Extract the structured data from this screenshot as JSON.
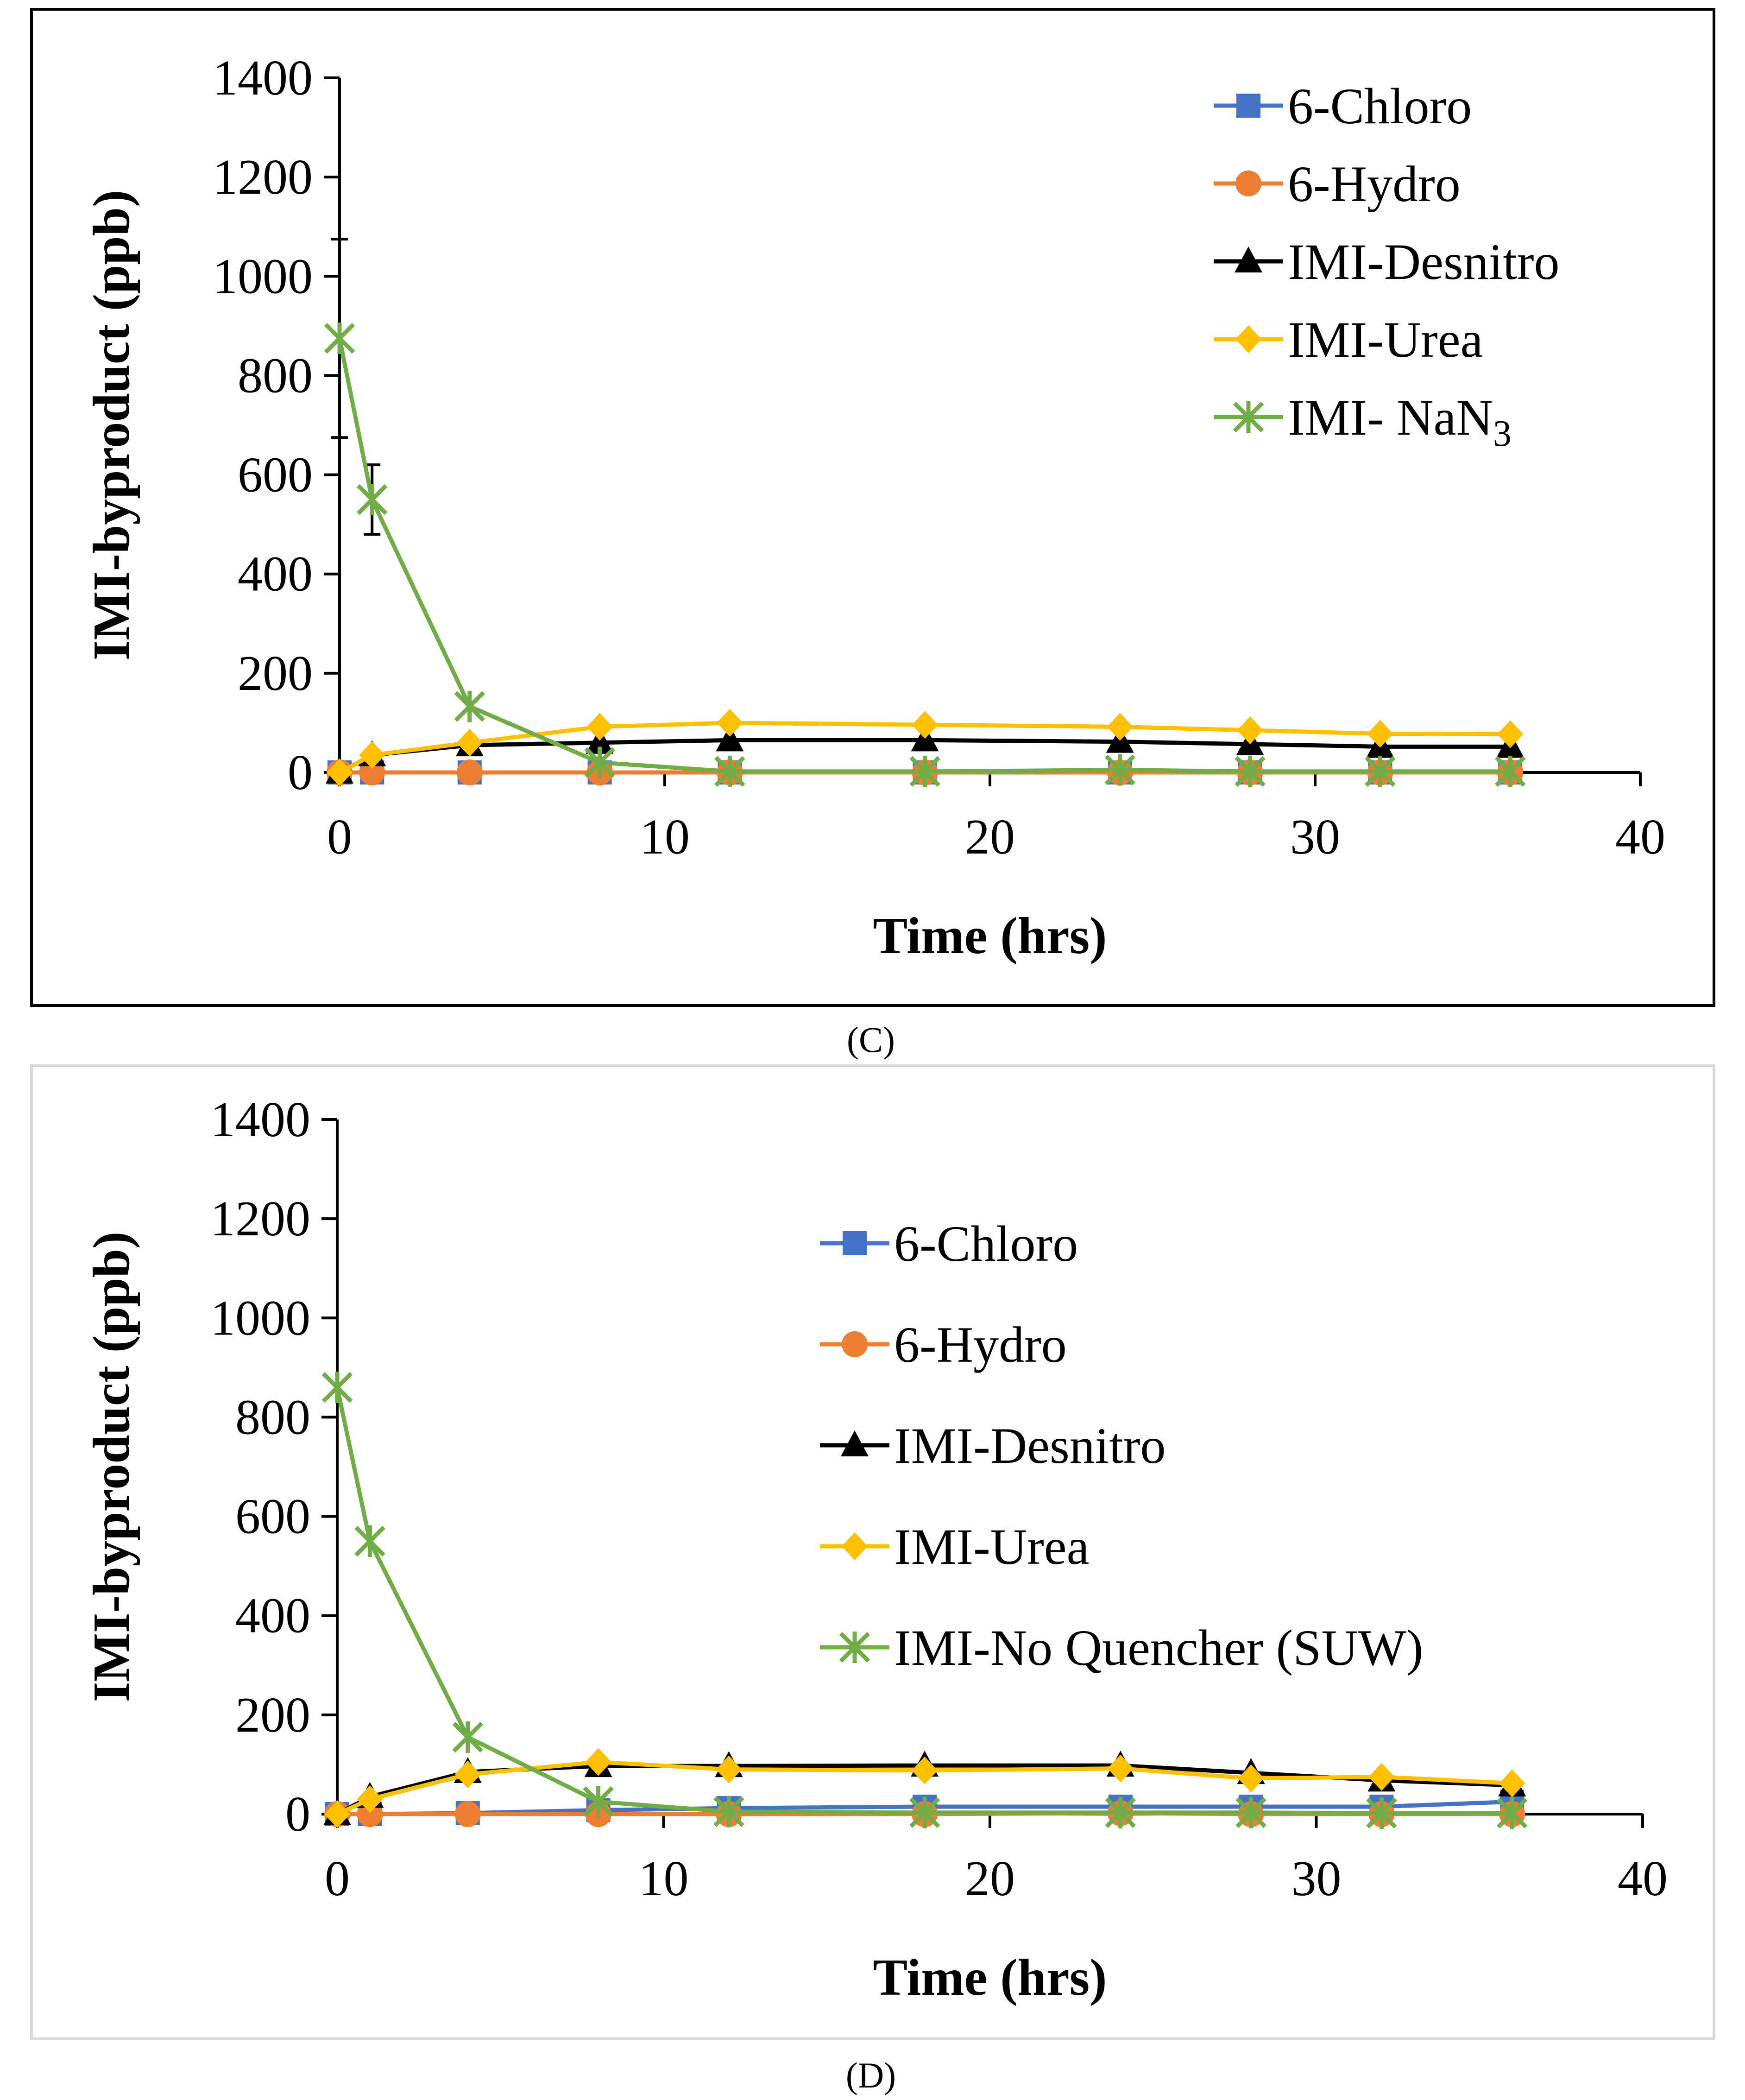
{
  "chart_data": [
    {
      "type": "line",
      "panel": "(C)",
      "caption": "(C)",
      "xlabel": "Time (hrs)",
      "ylabel": "IMI-byproduct (ppb)",
      "xlim": [
        0,
        40
      ],
      "ylim": [
        0,
        1400
      ],
      "xticks": [
        "0",
        "10",
        "20",
        "30",
        "40"
      ],
      "yticks": [
        "0",
        "200",
        "400",
        "600",
        "800",
        "1000",
        "1200",
        "1400"
      ],
      "legend_position": "top-right",
      "series": [
        {
          "name": "6-Chloro",
          "label": "6-Chloro",
          "color": "#4472C4",
          "marker": "square",
          "x": [
            0,
            1,
            4,
            8,
            12,
            18,
            24,
            28,
            32,
            36
          ],
          "y": [
            0,
            0,
            0,
            0,
            0,
            0,
            0,
            0,
            0,
            0
          ]
        },
        {
          "name": "6-Hydro",
          "label": "6-Hydro",
          "color": "#ED7D31",
          "marker": "circle",
          "x": [
            0,
            1,
            4,
            8,
            12,
            18,
            24,
            28,
            32,
            36
          ],
          "y": [
            0,
            0,
            0,
            0,
            0,
            0,
            0,
            0,
            0,
            0
          ]
        },
        {
          "name": "IMI-Desnitro",
          "label": "IMI-Desnitro",
          "color": "#000000",
          "marker": "triangle",
          "x": [
            0,
            1,
            4,
            8,
            12,
            18,
            24,
            28,
            32,
            36
          ],
          "y": [
            0,
            35,
            55,
            60,
            65,
            65,
            62,
            57,
            52,
            52
          ]
        },
        {
          "name": "IMI-Urea",
          "label": "IMI-Urea",
          "color": "#FFC000",
          "marker": "diamond",
          "x": [
            0,
            1,
            4,
            8,
            12,
            18,
            24,
            28,
            32,
            36
          ],
          "y": [
            0,
            35,
            60,
            92,
            100,
            96,
            92,
            85,
            78,
            77
          ]
        },
        {
          "name": "IMI- NaN3",
          "label_main": "IMI- NaN",
          "label_sub": "3",
          "color": "#70AD47",
          "marker": "star",
          "x": [
            0,
            1,
            4,
            8,
            12,
            18,
            24,
            28,
            32,
            36
          ],
          "y": [
            875,
            550,
            133,
            20,
            2,
            2,
            5,
            2,
            2,
            2
          ],
          "error_bars": [
            {
              "x": 0,
              "err": 200
            },
            {
              "x": 1,
              "err": 70
            }
          ]
        }
      ]
    },
    {
      "type": "line",
      "panel": "(D)",
      "caption": "(D)",
      "xlabel": "Time (hrs)",
      "ylabel": "IMI-byproduct (ppb)",
      "xlim": [
        0,
        40
      ],
      "ylim": [
        0,
        1400
      ],
      "xticks": [
        "0",
        "10",
        "20",
        "30",
        "40"
      ],
      "yticks": [
        "0",
        "200",
        "400",
        "600",
        "800",
        "1000",
        "1200",
        "1400"
      ],
      "legend_position": "right",
      "series": [
        {
          "name": "6-Chloro",
          "label": "6-Chloro",
          "color": "#4472C4",
          "marker": "square",
          "x": [
            0,
            1,
            4,
            8,
            12,
            18,
            24,
            28,
            32,
            36
          ],
          "y": [
            0,
            0,
            2,
            8,
            12,
            15,
            15,
            15,
            15,
            25
          ]
        },
        {
          "name": "6-Hydro",
          "label": "6-Hydro",
          "color": "#ED7D31",
          "marker": "circle",
          "x": [
            0,
            1,
            4,
            8,
            12,
            18,
            24,
            28,
            32,
            36
          ],
          "y": [
            0,
            0,
            0,
            0,
            0,
            0,
            2,
            0,
            0,
            0
          ]
        },
        {
          "name": "IMI-Desnitro",
          "label": "IMI-Desnitro",
          "color": "#000000",
          "marker": "triangle",
          "x": [
            0,
            1,
            4,
            8,
            12,
            18,
            24,
            28,
            32,
            36
          ],
          "y": [
            0,
            35,
            85,
            97,
            97,
            98,
            98,
            83,
            68,
            58
          ]
        },
        {
          "name": "IMI-Urea",
          "label": "IMI-Urea",
          "color": "#FFC000",
          "marker": "diamond",
          "x": [
            0,
            1,
            4,
            8,
            12,
            18,
            24,
            28,
            32,
            36
          ],
          "y": [
            0,
            30,
            80,
            105,
            90,
            88,
            92,
            72,
            75,
            62
          ]
        },
        {
          "name": "IMI-No Quencher (SUW)",
          "label": "IMI-No Quencher (SUW)",
          "color": "#70AD47",
          "marker": "star",
          "x": [
            0,
            1,
            4,
            8,
            12,
            18,
            24,
            28,
            32,
            36
          ],
          "y": [
            860,
            550,
            155,
            25,
            5,
            3,
            3,
            3,
            2,
            2
          ]
        }
      ]
    }
  ]
}
